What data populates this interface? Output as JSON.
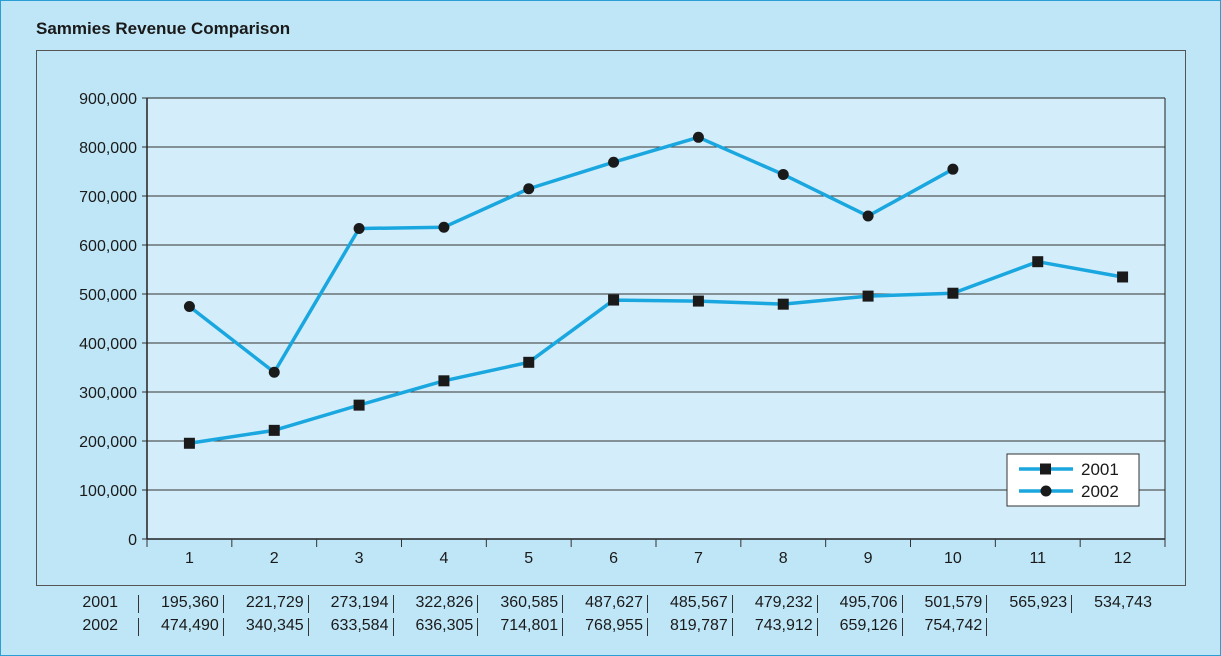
{
  "chart_data": {
    "type": "line",
    "title": "Sammies Revenue Comparison",
    "categories": [
      "1",
      "2",
      "3",
      "4",
      "5",
      "6",
      "7",
      "8",
      "9",
      "10",
      "11",
      "12"
    ],
    "ylim": [
      0,
      900000
    ],
    "yticks": [
      "0",
      "100,000",
      "200,000",
      "300,000",
      "400,000",
      "500,000",
      "600,000",
      "700,000",
      "800,000",
      "900,000"
    ],
    "grid": true,
    "legend_position": "bottom-right",
    "series": [
      {
        "name": "2001",
        "marker": "square",
        "color": "#1aa7e0",
        "values": [
          195360,
          221729,
          273194,
          322826,
          360585,
          487627,
          485567,
          479232,
          495706,
          501579,
          565923,
          534743
        ]
      },
      {
        "name": "2002",
        "marker": "circle",
        "color": "#1aa7e0",
        "values": [
          474490,
          340345,
          633584,
          636305,
          714801,
          768955,
          819787,
          743912,
          659126,
          754742,
          null,
          null
        ]
      }
    ],
    "table": {
      "rows": [
        {
          "label": "2001",
          "cells": [
            "195,360",
            "221,729",
            "273,194",
            "322,826",
            "360,585",
            "487,627",
            "485,567",
            "479,232",
            "495,706",
            "501,579",
            "565,923",
            "534,743"
          ]
        },
        {
          "label": "2002",
          "cells": [
            "474,490",
            "340,345",
            "633,584",
            "636,305",
            "714,801",
            "768,955",
            "819,787",
            "743,912",
            "659,126",
            "754,742",
            "",
            ""
          ]
        }
      ]
    }
  }
}
